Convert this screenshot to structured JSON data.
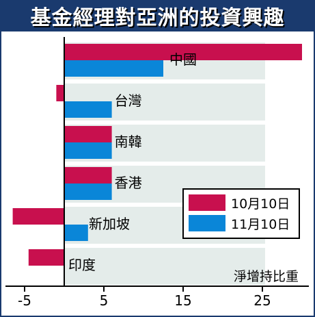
{
  "title": "基金經理對亞洲的投資興趣",
  "colors": {
    "title_bg": "#1a3a6e",
    "series_oct": "#c8104e",
    "series_nov": "#0a86d8",
    "band": "#e4ecea",
    "axis": "#000000"
  },
  "chart_data": {
    "type": "bar",
    "orientation": "horizontal",
    "categories": [
      "中國",
      "台灣",
      "南韓",
      "香港",
      "新加坡",
      "印度"
    ],
    "series": [
      {
        "name": "10月10日",
        "values": [
          30,
          -1,
          6,
          6,
          -6.5,
          -4.5
        ]
      },
      {
        "name": "11月10日",
        "values": [
          12.5,
          6,
          6,
          6,
          3,
          0
        ]
      }
    ],
    "xlim": [
      -7.5,
      30
    ],
    "xticks": [
      -5,
      5,
      15,
      25
    ],
    "xlabel": "淨增持比重",
    "legend_placement": "right"
  }
}
